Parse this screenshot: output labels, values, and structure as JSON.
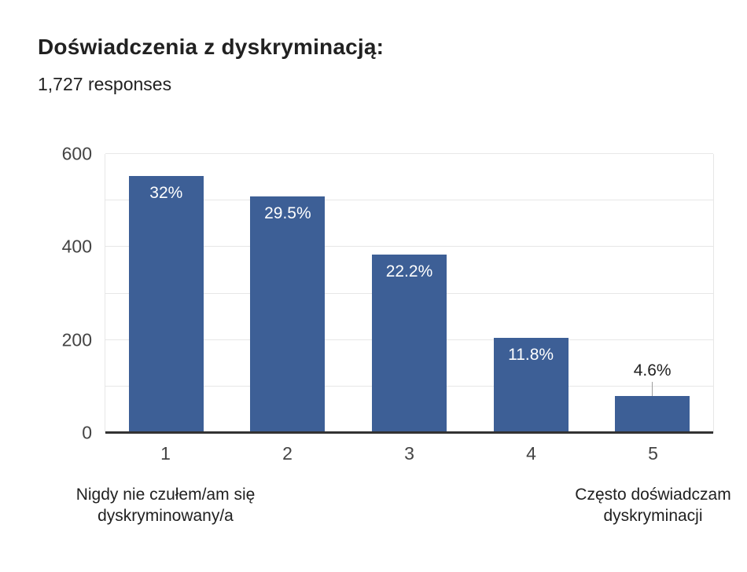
{
  "header": {
    "title": "Doświadczenia z dyskryminacją:",
    "responses": "1,727 responses"
  },
  "chart_data": {
    "type": "bar",
    "title": "Doświadczenia z dyskryminacją:",
    "subtitle": "1,727 responses",
    "categories": [
      "1",
      "2",
      "3",
      "4",
      "5"
    ],
    "values": [
      553,
      509,
      383,
      204,
      79
    ],
    "bars": [
      {
        "category": "1",
        "value": 553,
        "pct_label": "32%",
        "label_position": "inside"
      },
      {
        "category": "2",
        "value": 509,
        "pct_label": "29.5%",
        "label_position": "inside"
      },
      {
        "category": "3",
        "value": 383,
        "pct_label": "22.2%",
        "label_position": "inside"
      },
      {
        "category": "4",
        "value": 204,
        "pct_label": "11.8%",
        "label_position": "inside"
      },
      {
        "category": "5",
        "value": 79,
        "pct_label": "4.6%",
        "label_position": "outside"
      }
    ],
    "xlabel": "",
    "ylabel": "",
    "ylim": [
      0,
      600
    ],
    "yticks": [
      0,
      200,
      400,
      600
    ],
    "gridlines": [
      100,
      200,
      300,
      400,
      500,
      600
    ],
    "grid": true,
    "legend": "none",
    "axis_annotations": {
      "left": "Nigdy nie czułem/am się dyskryminowany/a",
      "right": "Często doświadczam dyskryminacji"
    },
    "colors": {
      "bar": "#3d5f96",
      "bar_label_inside": "#ffffff",
      "bar_label_outside": "#212121",
      "gridline": "#e7e7e7",
      "baseline": "#333333",
      "leader_line": "#9e9e9e",
      "tick_label": "#444444"
    }
  }
}
